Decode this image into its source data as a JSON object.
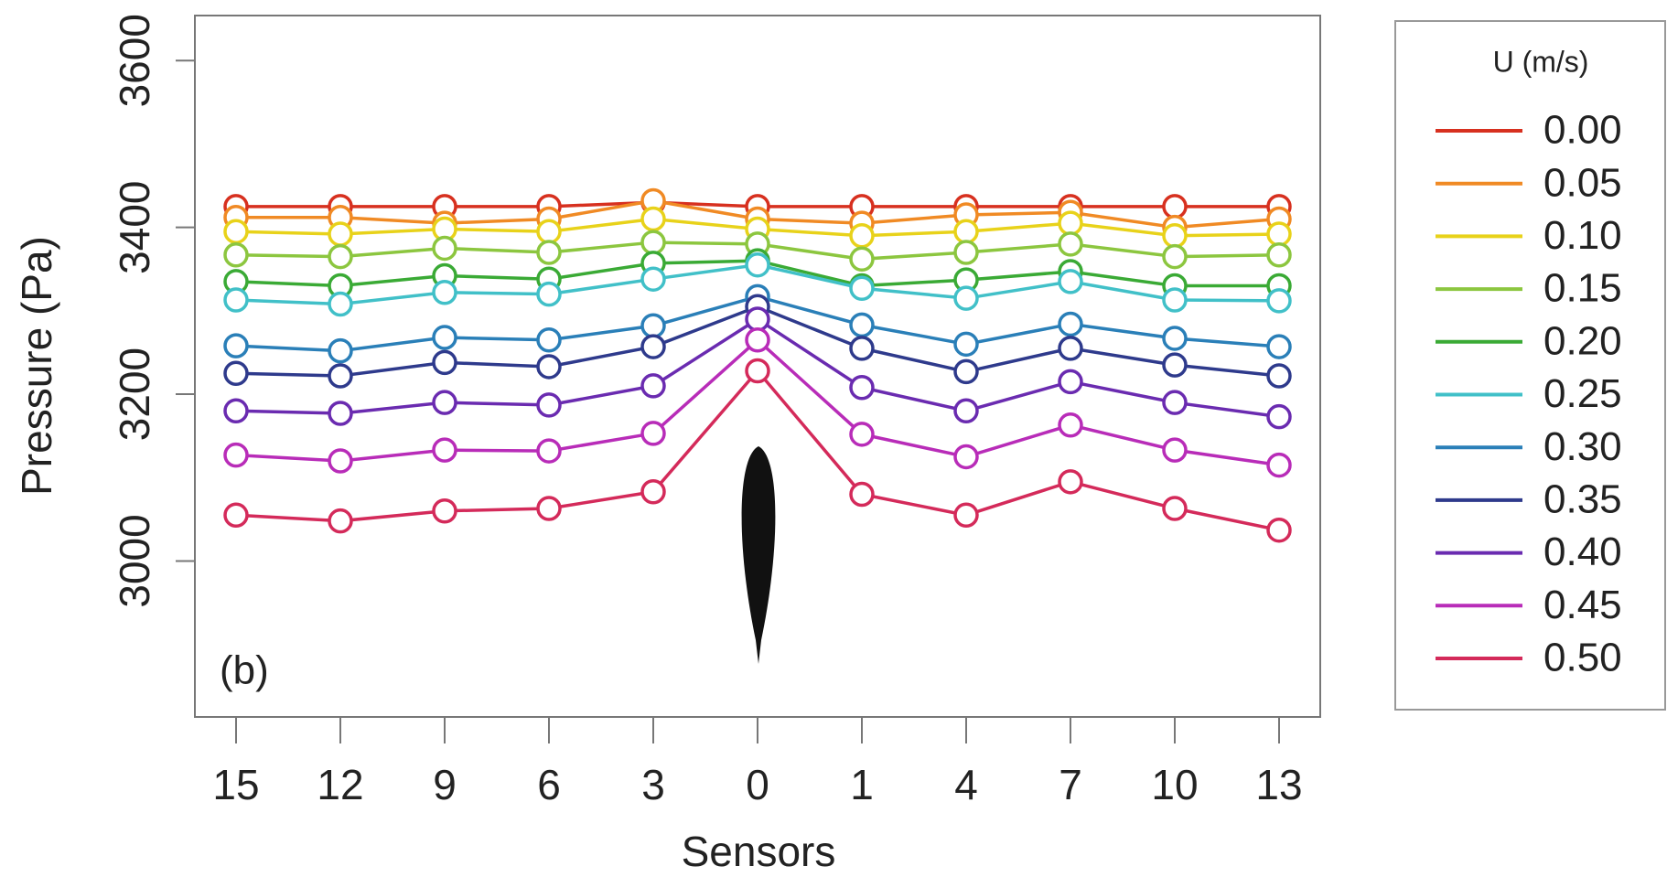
{
  "chart_data": {
    "type": "line",
    "x_label": "Sensors",
    "y_label": "Pressure (Pa)",
    "annotation": "(b)",
    "legend_title": "U (m/s)",
    "legend": "right",
    "categories": [
      "15",
      "12",
      "9",
      "6",
      "3",
      "0",
      "1",
      "4",
      "7",
      "10",
      "13"
    ],
    "ylim": [
      2813,
      3654
    ],
    "yticks": [
      3000,
      3200,
      3400,
      3600
    ],
    "grid": false,
    "series": [
      {
        "name": "0.00",
        "color": "#d7301f",
        "values": [
          3425,
          3425,
          3425,
          3425,
          3430,
          3425,
          3425,
          3425,
          3425,
          3425,
          3425
        ]
      },
      {
        "name": "0.05",
        "color": "#f08a24",
        "values": [
          3412,
          3412,
          3405,
          3410,
          3432,
          3410,
          3405,
          3415,
          3418,
          3400,
          3410
        ]
      },
      {
        "name": "0.10",
        "color": "#e8d21a",
        "values": [
          3395,
          3392,
          3398,
          3395,
          3410,
          3398,
          3390,
          3395,
          3405,
          3390,
          3392
        ]
      },
      {
        "name": "0.15",
        "color": "#8cc63f",
        "values": [
          3367,
          3365,
          3375,
          3370,
          3382,
          3380,
          3362,
          3370,
          3380,
          3365,
          3367
        ]
      },
      {
        "name": "0.20",
        "color": "#3aaa35",
        "values": [
          3335,
          3330,
          3342,
          3338,
          3357,
          3360,
          3330,
          3337,
          3347,
          3330,
          3330
        ]
      },
      {
        "name": "0.25",
        "color": "#41c0c8",
        "values": [
          3313,
          3308,
          3322,
          3320,
          3338,
          3355,
          3327,
          3315,
          3335,
          3313,
          3312
        ]
      },
      {
        "name": "0.30",
        "color": "#2a7fb8",
        "values": [
          3258,
          3252,
          3268,
          3265,
          3282,
          3317,
          3283,
          3260,
          3284,
          3267,
          3257
        ]
      },
      {
        "name": "0.35",
        "color": "#2e3a8c",
        "values": [
          3225,
          3222,
          3238,
          3233,
          3257,
          3305,
          3255,
          3227,
          3255,
          3235,
          3222
        ]
      },
      {
        "name": "0.40",
        "color": "#6a2bb0",
        "values": [
          3180,
          3177,
          3190,
          3187,
          3210,
          3290,
          3208,
          3180,
          3215,
          3190,
          3173
        ]
      },
      {
        "name": "0.45",
        "color": "#b82cb8",
        "values": [
          3127,
          3120,
          3133,
          3132,
          3153,
          3265,
          3152,
          3125,
          3163,
          3133,
          3115
        ]
      },
      {
        "name": "0.50",
        "color": "#d42a5a",
        "values": [
          3055,
          3048,
          3060,
          3063,
          3083,
          3228,
          3080,
          3055,
          3095,
          3063,
          3037
        ]
      }
    ]
  }
}
